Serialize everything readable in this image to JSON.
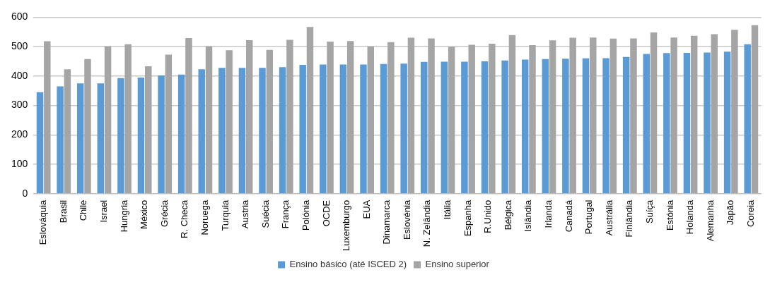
{
  "chart_data": {
    "type": "bar",
    "categories": [
      "Eslováquia",
      "Brasil",
      "Chile",
      "Israel",
      "Hungria",
      "México",
      "Grécia",
      "R. Checa",
      "Noruega",
      "Turquia",
      "Austria",
      "Suécia",
      "França",
      "Polónia",
      "OCDE",
      "Luxemburgo",
      "EUA",
      "Dinamarca",
      "Eslovénia",
      "N. Zelândia",
      "Itália",
      "Espanha",
      "R.Unido",
      "Bélgica",
      "Islândia",
      "Irlanda",
      "Canadá",
      "Portugal",
      "Austrália",
      "Finlândia",
      "Suíça",
      "Estónia",
      "Holanda",
      "Alemanha",
      "Japão",
      "Coreia"
    ],
    "series": [
      {
        "name": "Ensino básico (até ISCED 2)",
        "color": "#5b9bd5",
        "values": [
          345,
          365,
          375,
          375,
          393,
          395,
          402,
          405,
          423,
          428,
          428,
          428,
          430,
          438,
          439,
          439,
          439,
          441,
          442,
          448,
          449,
          449,
          450,
          453,
          456,
          458,
          459,
          460,
          461,
          465,
          475,
          478,
          479,
          480,
          483,
          508
        ]
      },
      {
        "name": "Ensino superior",
        "color": "#a5a5a5",
        "values": [
          518,
          423,
          458,
          500,
          508,
          433,
          473,
          529,
          500,
          488,
          522,
          489,
          523,
          567,
          517,
          519,
          500,
          515,
          530,
          528,
          499,
          506,
          510,
          539,
          505,
          521,
          530,
          531,
          527,
          528,
          548,
          531,
          537,
          542,
          557,
          573
        ]
      }
    ],
    "ylim": [
      0,
      600
    ],
    "yticks": [
      0,
      100,
      200,
      300,
      400,
      500,
      600
    ],
    "grid": "y",
    "legend": "bottom"
  }
}
